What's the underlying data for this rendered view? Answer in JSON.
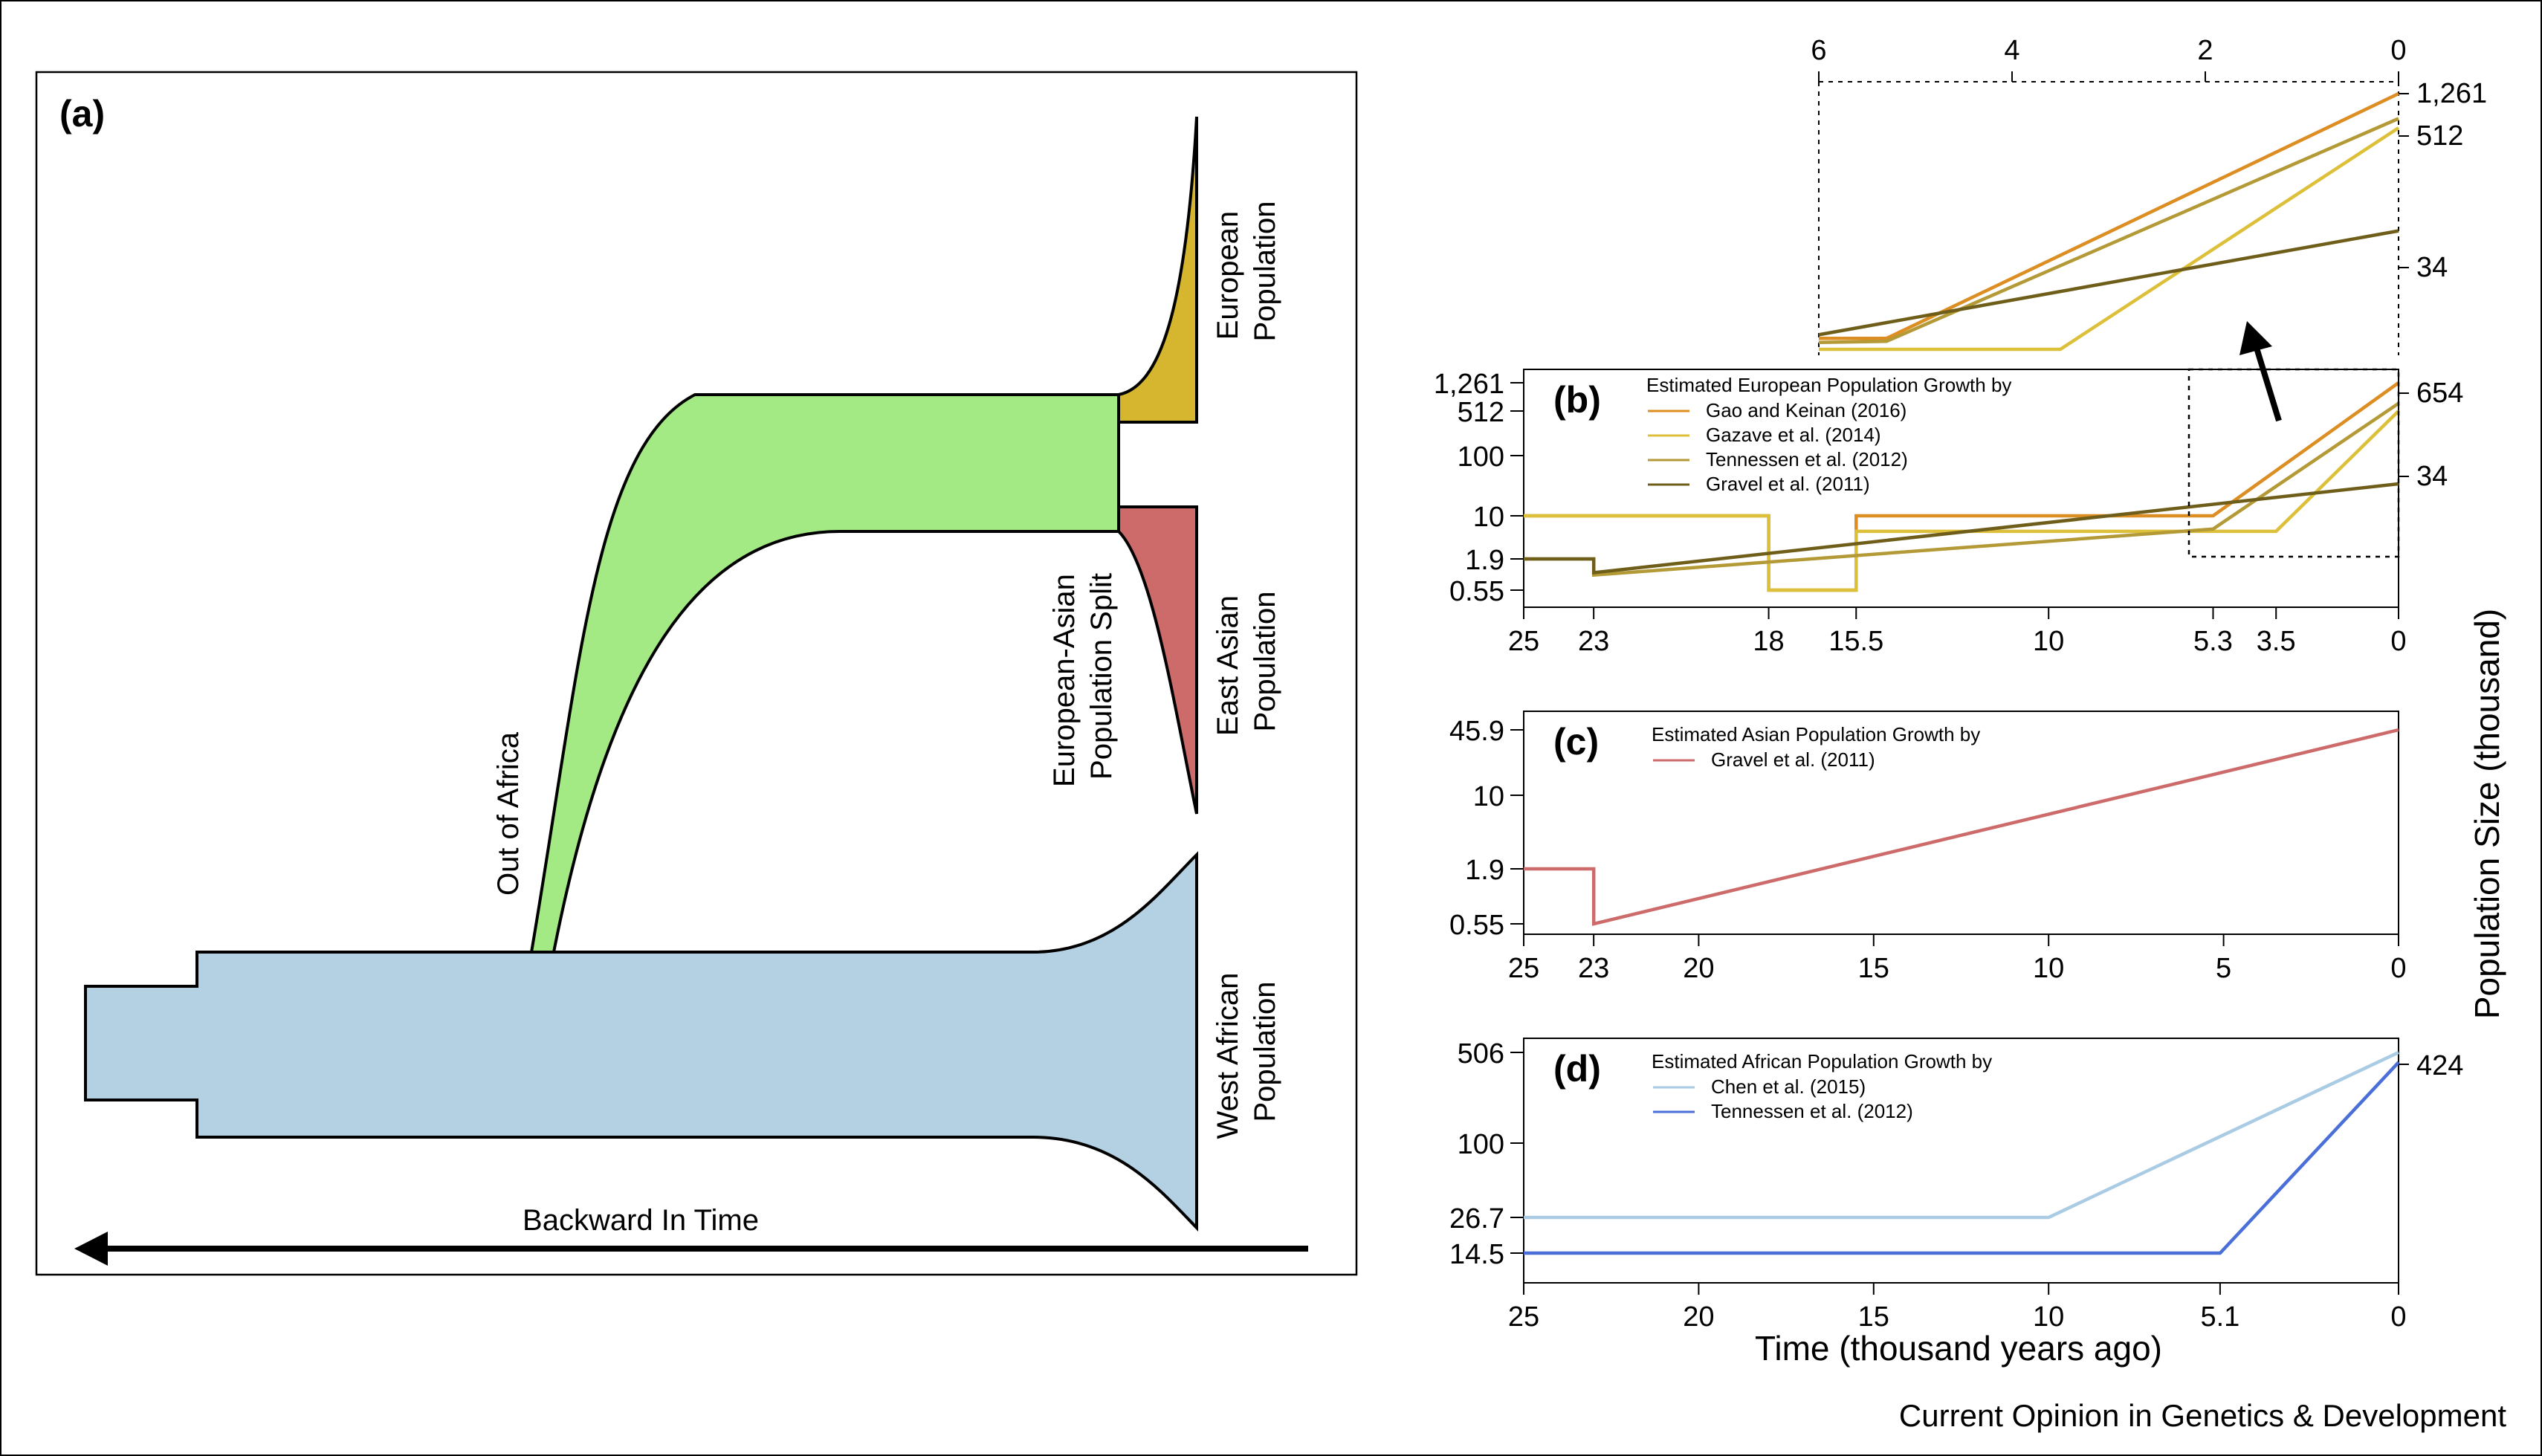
{
  "panel_a": {
    "label": "(a)",
    "european_population": [
      "European",
      "Population"
    ],
    "east_asian_population": [
      "East Asian",
      "Population"
    ],
    "west_african_population": [
      "West African",
      "Population"
    ],
    "split_label": [
      "European-Asian",
      "Population Split"
    ],
    "out_of_africa": "Out of Africa",
    "backward_in_time": "Backward In Time",
    "colors": {
      "european": "#d6b62e",
      "east_asian": "#cd6b6b",
      "west_african": "#b3d1e3",
      "out_of_africa": "#a3ea84"
    }
  },
  "y_axis_label": "Population Size (thousand)",
  "x_axis_label": "Time (thousand years ago)",
  "credit": "Current Opinion in Genetics & Development",
  "chart_data": [
    {
      "id": "b",
      "type": "line",
      "label": "(b)",
      "legend_title": "Estimated European Population Growth by",
      "x_ticks": [
        "25",
        "23",
        "18",
        "15.5",
        "10",
        "5.3",
        "3.5",
        "0"
      ],
      "y_ticks": [
        "1,261",
        "512",
        "100",
        "10",
        "1.9",
        "0.55"
      ],
      "right_labels": [
        "654",
        "34"
      ],
      "xlim": [
        25,
        0
      ],
      "y_scale": "log",
      "ylim": [
        0.55,
        1261
      ],
      "series": [
        {
          "name": "Gao and Keinan (2016)",
          "color": "#dc8e23",
          "points": [
            [
              25,
              10
            ],
            [
              18,
              10
            ],
            [
              18,
              0.55
            ],
            [
              15.5,
              0.55
            ],
            [
              15.5,
              10
            ],
            [
              5.3,
              10
            ],
            [
              0,
              1261
            ]
          ]
        },
        {
          "name": "Gazave et al. (2014)",
          "color": "#ddc03a",
          "points": [
            [
              25,
              10
            ],
            [
              18,
              10
            ],
            [
              18,
              0.55
            ],
            [
              15.5,
              0.55
            ],
            [
              15.5,
              5.5
            ],
            [
              3.5,
              5.5
            ],
            [
              0,
              512
            ]
          ]
        },
        {
          "name": "Tennessen et al. (2012)",
          "color": "#b39a36",
          "points": [
            [
              25,
              1.9
            ],
            [
              23,
              1.9
            ],
            [
              23,
              1.0
            ],
            [
              5.3,
              6.0
            ],
            [
              0,
              654
            ]
          ]
        },
        {
          "name": "Gravel et al. (2011)",
          "color": "#6e5e1a",
          "points": [
            [
              25,
              1.9
            ],
            [
              23,
              1.9
            ],
            [
              23,
              1.1
            ],
            [
              0,
              34
            ]
          ]
        }
      ]
    },
    {
      "id": "b-inset",
      "type": "line",
      "x_ticks": [
        "6",
        "4",
        "2",
        "0"
      ],
      "right_labels": [
        "1,261",
        "512",
        "34"
      ],
      "xlim": [
        6,
        0
      ]
    },
    {
      "id": "c",
      "type": "line",
      "label": "(c)",
      "legend_title": "Estimated Asian Population Growth by",
      "x_ticks": [
        "25",
        "23",
        "20",
        "15",
        "10",
        "5",
        "0"
      ],
      "y_ticks": [
        "45.9",
        "10",
        "1.9",
        "0.55"
      ],
      "xlim": [
        25,
        0
      ],
      "y_scale": "log",
      "ylim": [
        0.55,
        45.9
      ],
      "series": [
        {
          "name": "Gravel et al. (2011)",
          "color": "#cd6b6b",
          "points": [
            [
              25,
              1.9
            ],
            [
              23,
              1.9
            ],
            [
              23,
              0.55
            ],
            [
              0,
              45.9
            ]
          ]
        }
      ]
    },
    {
      "id": "d",
      "type": "line",
      "label": "(d)",
      "legend_title": "Estimated African Population Growth by",
      "x_ticks": [
        "25",
        "20",
        "15",
        "10",
        "5.1",
        "0"
      ],
      "y_ticks": [
        "506",
        "100",
        "26.7",
        "14.5"
      ],
      "right_labels": [
        "424"
      ],
      "xlim": [
        25,
        0
      ],
      "y_scale": "log",
      "ylim": [
        14.5,
        506
      ],
      "series": [
        {
          "name": "Chen et al. (2015)",
          "color": "#a9cbe3",
          "points": [
            [
              25,
              26.7
            ],
            [
              10,
              26.7
            ],
            [
              0,
              506
            ]
          ]
        },
        {
          "name": "Tennessen et al. (2012)",
          "color": "#4a6fd8",
          "points": [
            [
              25,
              14.5
            ],
            [
              5.1,
              14.5
            ],
            [
              0,
              424
            ]
          ]
        }
      ]
    }
  ]
}
